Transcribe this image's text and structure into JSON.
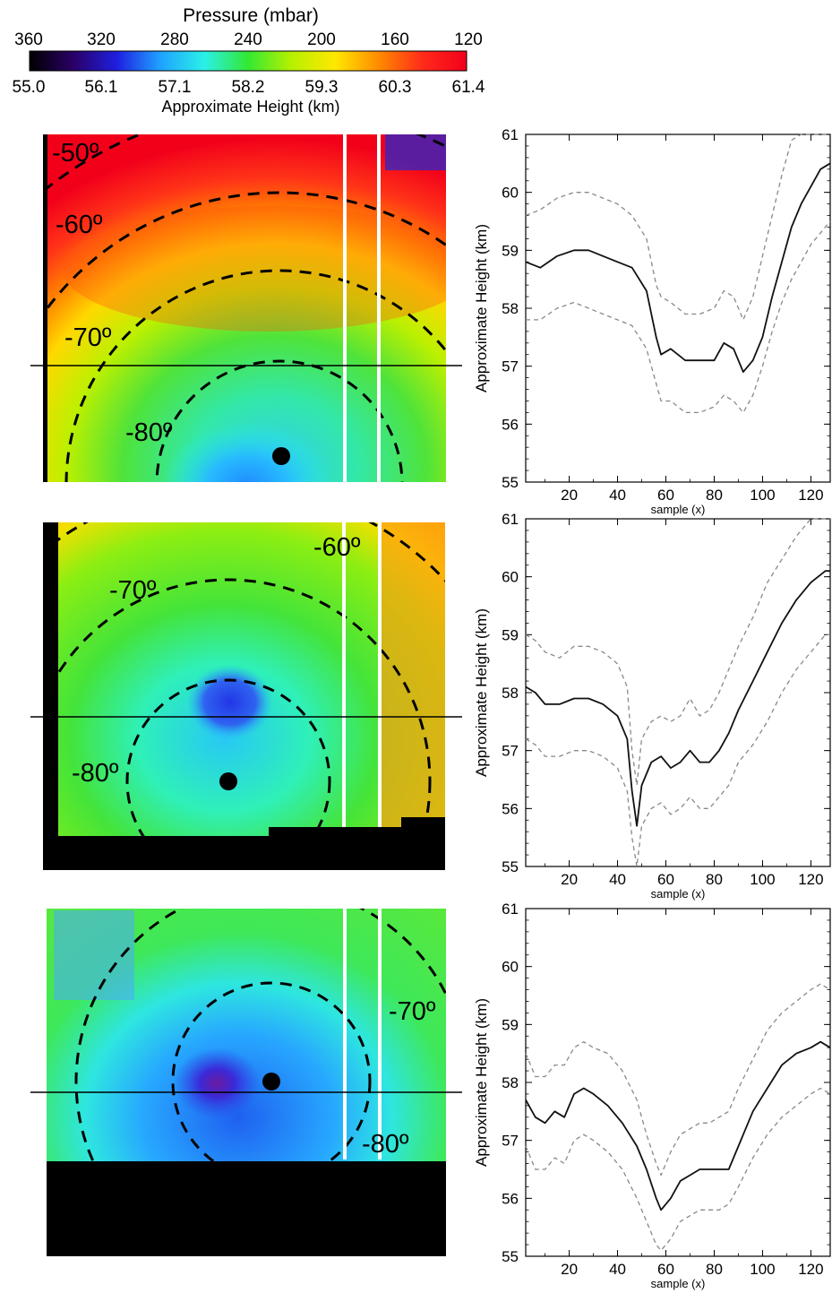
{
  "colorbar": {
    "title": "Pressure (mbar)",
    "pressure_ticks": [
      "360",
      "320",
      "280",
      "240",
      "200",
      "160",
      "120"
    ],
    "height_ticks": [
      "55.0",
      "56.1",
      "57.1",
      "58.2",
      "59.3",
      "60.3",
      "61.4"
    ],
    "label": "Approximate Height (km)",
    "colormap": [
      "#000000",
      "#2a0066",
      "#1f1fe0",
      "#1fa3ff",
      "#2af0e8",
      "#33e833",
      "#b8f000",
      "#ffe800",
      "#ff8a00",
      "#ff2a1a",
      "#f2001a"
    ]
  },
  "maps": [
    {
      "latitude_labels": [
        "-50º",
        "-60º",
        "-70º",
        "-80º"
      ]
    },
    {
      "latitude_labels": [
        "-60º",
        "-70º",
        "-80º"
      ]
    },
    {
      "latitude_labels": [
        "-70º",
        "-80º"
      ]
    }
  ],
  "chart_data": [
    {
      "type": "line",
      "xlabel": "sample (x)",
      "ylabel": "Approximate Height (km)",
      "xlim": [
        2,
        128
      ],
      "ylim": [
        55,
        61
      ],
      "xticks": [
        "20",
        "40",
        "60",
        "80",
        "100",
        "120"
      ],
      "yticks": [
        "55",
        "56",
        "57",
        "58",
        "59",
        "60",
        "61"
      ],
      "x": [
        2,
        8,
        15,
        22,
        28,
        34,
        40,
        46,
        52,
        56,
        58,
        62,
        68,
        74,
        80,
        84,
        88,
        92,
        96,
        100,
        104,
        108,
        112,
        116,
        120,
        124,
        128
      ],
      "series": [
        {
          "role": "mean",
          "style": "solid",
          "values": [
            58.8,
            58.7,
            58.9,
            59.0,
            59.0,
            58.9,
            58.8,
            58.7,
            58.3,
            57.5,
            57.2,
            57.3,
            57.1,
            57.1,
            57.1,
            57.4,
            57.3,
            56.9,
            57.1,
            57.5,
            58.2,
            58.8,
            59.4,
            59.8,
            60.1,
            60.4,
            60.5
          ]
        },
        {
          "role": "upper",
          "style": "dashed",
          "values": [
            59.6,
            59.7,
            59.9,
            60.0,
            60.0,
            59.9,
            59.8,
            59.6,
            59.2,
            58.4,
            58.2,
            58.1,
            57.9,
            57.9,
            58.0,
            58.3,
            58.2,
            57.8,
            58.2,
            58.9,
            59.6,
            60.3,
            60.9,
            61.0,
            61.0,
            61.0,
            61.0
          ]
        },
        {
          "role": "lower",
          "style": "dashed",
          "values": [
            57.8,
            57.8,
            58.0,
            58.1,
            58.0,
            57.9,
            57.8,
            57.7,
            57.3,
            56.7,
            56.4,
            56.4,
            56.2,
            56.2,
            56.3,
            56.5,
            56.4,
            56.2,
            56.5,
            57.0,
            57.6,
            58.1,
            58.5,
            58.8,
            59.1,
            59.3,
            59.5
          ]
        }
      ]
    },
    {
      "type": "line",
      "xlabel": "sample (x)",
      "ylabel": "Approximate Height (km)",
      "xlim": [
        2,
        128
      ],
      "ylim": [
        55,
        61
      ],
      "xticks": [
        "20",
        "40",
        "60",
        "80",
        "100",
        "120"
      ],
      "yticks": [
        "55",
        "56",
        "57",
        "58",
        "59",
        "60",
        "61"
      ],
      "x": [
        2,
        6,
        10,
        16,
        22,
        28,
        34,
        40,
        44,
        46,
        48,
        50,
        54,
        58,
        62,
        66,
        70,
        74,
        78,
        82,
        86,
        90,
        96,
        102,
        108,
        114,
        120,
        126,
        128
      ],
      "series": [
        {
          "role": "mean",
          "style": "solid",
          "values": [
            58.1,
            58.0,
            57.8,
            57.8,
            57.9,
            57.9,
            57.8,
            57.6,
            57.2,
            56.3,
            55.7,
            56.4,
            56.8,
            56.9,
            56.7,
            56.8,
            57.0,
            56.8,
            56.8,
            57.0,
            57.3,
            57.7,
            58.2,
            58.7,
            59.2,
            59.6,
            59.9,
            60.1,
            60.1
          ]
        },
        {
          "role": "upper",
          "style": "dashed",
          "values": [
            59.0,
            58.9,
            58.7,
            58.6,
            58.8,
            58.8,
            58.7,
            58.5,
            58.1,
            57.0,
            56.4,
            57.2,
            57.5,
            57.6,
            57.5,
            57.6,
            57.9,
            57.6,
            57.7,
            58.0,
            58.4,
            58.8,
            59.3,
            59.9,
            60.3,
            60.7,
            61.0,
            61.0,
            61.0
          ]
        },
        {
          "role": "lower",
          "style": "dashed",
          "values": [
            57.2,
            57.1,
            56.9,
            56.9,
            57.0,
            57.0,
            56.9,
            56.7,
            56.3,
            55.5,
            55.0,
            55.7,
            56.0,
            56.1,
            55.9,
            56.0,
            56.2,
            56.0,
            56.0,
            56.2,
            56.4,
            56.8,
            57.1,
            57.5,
            58.0,
            58.4,
            58.7,
            59.0,
            59.0
          ]
        }
      ]
    },
    {
      "type": "line",
      "xlabel": "sample (x)",
      "ylabel": "Approximate Height (km)",
      "xlim": [
        2,
        128
      ],
      "ylim": [
        55,
        61
      ],
      "xticks": [
        "20",
        "40",
        "60",
        "80",
        "100",
        "120"
      ],
      "yticks": [
        "55",
        "56",
        "57",
        "58",
        "59",
        "60",
        "61"
      ],
      "x": [
        2,
        6,
        10,
        14,
        18,
        22,
        26,
        30,
        36,
        42,
        48,
        52,
        56,
        58,
        62,
        66,
        70,
        74,
        78,
        82,
        86,
        90,
        96,
        102,
        108,
        114,
        120,
        124,
        128
      ],
      "series": [
        {
          "role": "mean",
          "style": "solid",
          "values": [
            57.7,
            57.4,
            57.3,
            57.5,
            57.4,
            57.8,
            57.9,
            57.8,
            57.6,
            57.3,
            56.9,
            56.5,
            56.0,
            55.8,
            56.0,
            56.3,
            56.4,
            56.5,
            56.5,
            56.5,
            56.5,
            56.9,
            57.5,
            57.9,
            58.3,
            58.5,
            58.6,
            58.7,
            58.6
          ]
        },
        {
          "role": "upper",
          "style": "dashed",
          "values": [
            58.5,
            58.1,
            58.1,
            58.3,
            58.3,
            58.6,
            58.7,
            58.6,
            58.5,
            58.2,
            57.7,
            57.1,
            56.6,
            56.4,
            56.8,
            57.1,
            57.2,
            57.3,
            57.3,
            57.4,
            57.5,
            57.9,
            58.4,
            58.9,
            59.2,
            59.4,
            59.6,
            59.7,
            59.6
          ]
        },
        {
          "role": "lower",
          "style": "dashed",
          "values": [
            56.9,
            56.5,
            56.5,
            56.7,
            56.6,
            57.0,
            57.1,
            57.0,
            56.8,
            56.5,
            56.0,
            55.6,
            55.2,
            55.1,
            55.3,
            55.6,
            55.7,
            55.8,
            55.8,
            55.8,
            55.9,
            56.2,
            56.7,
            57.1,
            57.4,
            57.6,
            57.8,
            57.9,
            57.8
          ]
        }
      ]
    }
  ]
}
